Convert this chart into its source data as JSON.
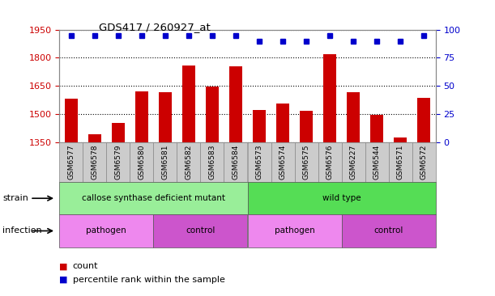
{
  "title": "GDS417 / 260927_at",
  "samples": [
    "GSM6577",
    "GSM6578",
    "GSM6579",
    "GSM6580",
    "GSM6581",
    "GSM6582",
    "GSM6583",
    "GSM6584",
    "GSM6573",
    "GSM6574",
    "GSM6575",
    "GSM6576",
    "GSM6227",
    "GSM6544",
    "GSM6571",
    "GSM6572"
  ],
  "counts": [
    1580,
    1390,
    1450,
    1620,
    1618,
    1760,
    1645,
    1755,
    1520,
    1555,
    1515,
    1820,
    1618,
    1495,
    1375,
    1585
  ],
  "percentile": [
    95,
    95,
    95,
    95,
    95,
    95,
    95,
    95,
    90,
    90,
    90,
    95,
    90,
    90,
    90,
    95
  ],
  "ylim_left": [
    1350,
    1950
  ],
  "ylim_right": [
    0,
    100
  ],
  "yticks_left": [
    1350,
    1500,
    1650,
    1800,
    1950
  ],
  "yticks_right": [
    0,
    25,
    50,
    75,
    100
  ],
  "bar_color": "#cc0000",
  "dot_color": "#0000cc",
  "strain_labels": [
    {
      "label": "callose synthase deficient mutant",
      "start": 0,
      "end": 8,
      "color": "#99ee99"
    },
    {
      "label": "wild type",
      "start": 8,
      "end": 16,
      "color": "#55dd55"
    }
  ],
  "infection_labels": [
    {
      "label": "pathogen",
      "start": 0,
      "end": 4,
      "color": "#ee88ee"
    },
    {
      "label": "control",
      "start": 4,
      "end": 8,
      "color": "#cc55cc"
    },
    {
      "label": "pathogen",
      "start": 8,
      "end": 12,
      "color": "#ee88ee"
    },
    {
      "label": "control",
      "start": 12,
      "end": 16,
      "color": "#cc55cc"
    }
  ],
  "strain_row_label": "strain",
  "infection_row_label": "infection",
  "legend_count_label": "count",
  "legend_pct_label": "percentile rank within the sample",
  "left_axis_color": "#cc0000",
  "right_axis_color": "#0000cc",
  "ticklabel_area_color": "#cccccc"
}
